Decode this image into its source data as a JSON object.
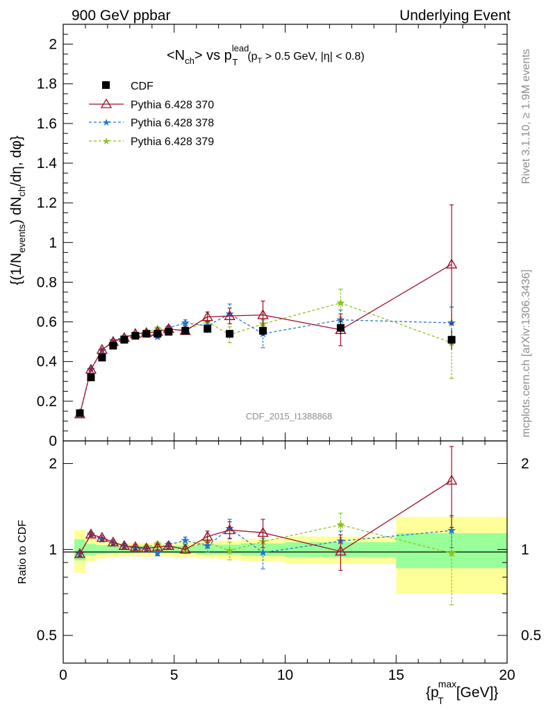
{
  "header": {
    "left": "900 GeV ppbar",
    "right": "Underlying Event",
    "side_top": "Rivet 3.1.10, ≥ 1.9M events",
    "side_bottom": "mcplots.cern.ch [arXiv:1306.3436]",
    "watermark": "CDF_2015_I1388868"
  },
  "title": {
    "main": "<N",
    "main_sub": "ch",
    "main_mid": "> vs p",
    "main_sup": "lead",
    "main_sub2": "T",
    "cut1": "(p",
    "cut1_sub": "T",
    "cut2": " > 0.5 GeV, |η| < 0.8)"
  },
  "legend": {
    "cdf": "CDF",
    "p370": "Pythia 6.428 370",
    "p378": "Pythia 6.428 378",
    "p379": "Pythia 6.428 379"
  },
  "colors": {
    "p370": "#a01028",
    "p378": "#1f77d0",
    "p379": "#8cc21e",
    "band_inner": "#99ff99",
    "band_outer": "#ffff99"
  },
  "chart_data": [
    {
      "type": "scatter",
      "title": "<Nch> vs pT lead (pT > 0.5 GeV, |η| < 0.8)",
      "ylabel": "{(1/N_events) dN_ch/dη, dφ}",
      "xlim": [
        0,
        20
      ],
      "ylim": [
        0,
        2.1
      ],
      "yticks": [
        "0",
        "0.2",
        "0.4",
        "0.6",
        "0.8",
        "1",
        "1.2",
        "1.4",
        "1.6",
        "1.8",
        "2"
      ],
      "x": [
        0.75,
        1.25,
        1.75,
        2.25,
        2.75,
        3.25,
        3.75,
        4.25,
        4.75,
        5.5,
        6.5,
        7.5,
        9.0,
        12.5,
        17.5
      ],
      "xerr": [
        0.25,
        0.25,
        0.25,
        0.25,
        0.25,
        0.25,
        0.25,
        0.25,
        0.25,
        0.5,
        0.5,
        0.5,
        1.0,
        2.5,
        2.5
      ],
      "series": [
        {
          "name": "CDF",
          "values": [
            0.14,
            0.32,
            0.42,
            0.48,
            0.51,
            0.53,
            0.54,
            0.54,
            0.55,
            0.555,
            0.565,
            0.54,
            0.555,
            0.57,
            0.51
          ],
          "errors": [
            0.012,
            0.015,
            0.013,
            0.012,
            0.012,
            0.012,
            0.012,
            0.012,
            0.012,
            0.015,
            0.02,
            0.02,
            0.025,
            0.035,
            0.05
          ]
        },
        {
          "name": "Pythia 6.428 370",
          "values": [
            0.135,
            0.36,
            0.46,
            0.5,
            0.52,
            0.54,
            0.545,
            0.55,
            0.565,
            0.555,
            0.625,
            0.63,
            0.635,
            0.56,
            0.89
          ],
          "errors": [
            0.005,
            0.006,
            0.006,
            0.006,
            0.006,
            0.007,
            0.008,
            0.01,
            0.012,
            0.015,
            0.025,
            0.04,
            0.07,
            0.08,
            0.3
          ]
        },
        {
          "name": "Pythia 6.428 378",
          "values": [
            0.135,
            0.36,
            0.455,
            0.505,
            0.525,
            0.535,
            0.54,
            0.525,
            0.57,
            0.595,
            0.58,
            0.64,
            0.54,
            0.61,
            0.595
          ],
          "errors": [
            0.005,
            0.006,
            0.006,
            0.006,
            0.006,
            0.007,
            0.008,
            0.01,
            0.012,
            0.015,
            0.025,
            0.05,
            0.07,
            0.05,
            0.08
          ]
        },
        {
          "name": "Pythia 6.428 379",
          "values": [
            0.135,
            0.36,
            0.455,
            0.505,
            0.52,
            0.54,
            0.55,
            0.565,
            0.56,
            0.56,
            0.6,
            0.535,
            0.59,
            0.695,
            0.495
          ],
          "errors": [
            0.005,
            0.006,
            0.006,
            0.006,
            0.006,
            0.007,
            0.008,
            0.01,
            0.012,
            0.015,
            0.025,
            0.04,
            0.05,
            0.07,
            0.18
          ]
        }
      ],
      "legend": "top-left"
    },
    {
      "type": "scatter",
      "ylabel": "Ratio to CDF",
      "xlabel": "{p_T^max [GeV]}",
      "xlim": [
        0,
        20
      ],
      "ylim": [
        0.4,
        2.4
      ],
      "yscale": "log",
      "yticks": [
        "0.5",
        "1",
        "2"
      ],
      "xticks": [
        "0",
        "5",
        "10",
        "15",
        "20"
      ],
      "x": [
        0.75,
        1.25,
        1.75,
        2.25,
        2.75,
        3.25,
        3.75,
        4.25,
        4.75,
        5.5,
        6.5,
        7.5,
        9.0,
        12.5,
        17.5
      ],
      "series": [
        {
          "name": "Pythia 6.428 370",
          "values": [
            0.965,
            1.13,
            1.1,
            1.06,
            1.03,
            1.02,
            1.01,
            1.02,
            1.03,
            1.0,
            1.11,
            1.17,
            1.145,
            0.985,
            1.745
          ],
          "errors": [
            0.02,
            0.02,
            0.02,
            0.02,
            0.02,
            0.02,
            0.02,
            0.02,
            0.02,
            0.03,
            0.05,
            0.08,
            0.13,
            0.14,
            0.55
          ]
        },
        {
          "name": "Pythia 6.428 378",
          "values": [
            0.965,
            1.13,
            1.085,
            1.05,
            1.03,
            1.01,
            1.0,
            0.97,
            1.04,
            1.075,
            1.03,
            1.185,
            0.975,
            1.07,
            1.165
          ],
          "errors": [
            0.02,
            0.02,
            0.02,
            0.02,
            0.02,
            0.02,
            0.02,
            0.02,
            0.02,
            0.03,
            0.05,
            0.09,
            0.12,
            0.09,
            0.15
          ]
        },
        {
          "name": "Pythia 6.428 379",
          "values": [
            0.965,
            1.125,
            1.085,
            1.05,
            1.02,
            1.02,
            1.02,
            1.045,
            1.02,
            1.01,
            1.06,
            0.99,
            1.065,
            1.22,
            0.97
          ],
          "errors": [
            0.02,
            0.02,
            0.02,
            0.02,
            0.02,
            0.02,
            0.02,
            0.02,
            0.02,
            0.03,
            0.05,
            0.07,
            0.09,
            0.12,
            0.33
          ]
        }
      ],
      "bands": {
        "inner_halfwidth": [
          0.085,
          0.045,
          0.035,
          0.03,
          0.028,
          0.028,
          0.028,
          0.028,
          0.028,
          0.03,
          0.04,
          0.04,
          0.05,
          0.06,
          0.14
        ],
        "outer_halfwidth": [
          0.17,
          0.09,
          0.07,
          0.06,
          0.055,
          0.055,
          0.055,
          0.055,
          0.055,
          0.06,
          0.07,
          0.075,
          0.09,
          0.11,
          0.3
        ]
      }
    }
  ]
}
